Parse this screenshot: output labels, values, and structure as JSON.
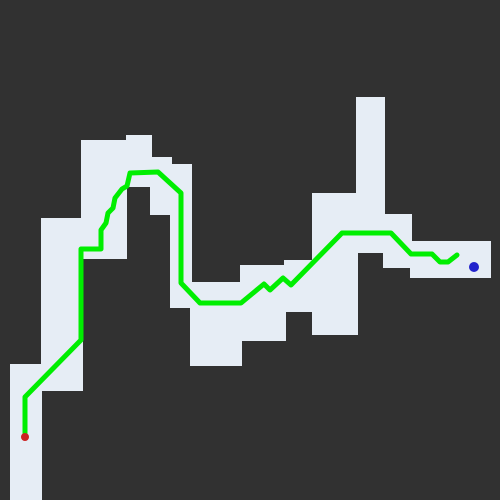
{
  "colors": {
    "background": "#313131",
    "free_space": "#e6edf5",
    "path": "#00ee00",
    "start_marker": "#cc2222",
    "goal_marker": "#2222cc"
  },
  "icons": {
    "start": "start-marker-dot",
    "goal": "goal-marker-dot"
  }
}
